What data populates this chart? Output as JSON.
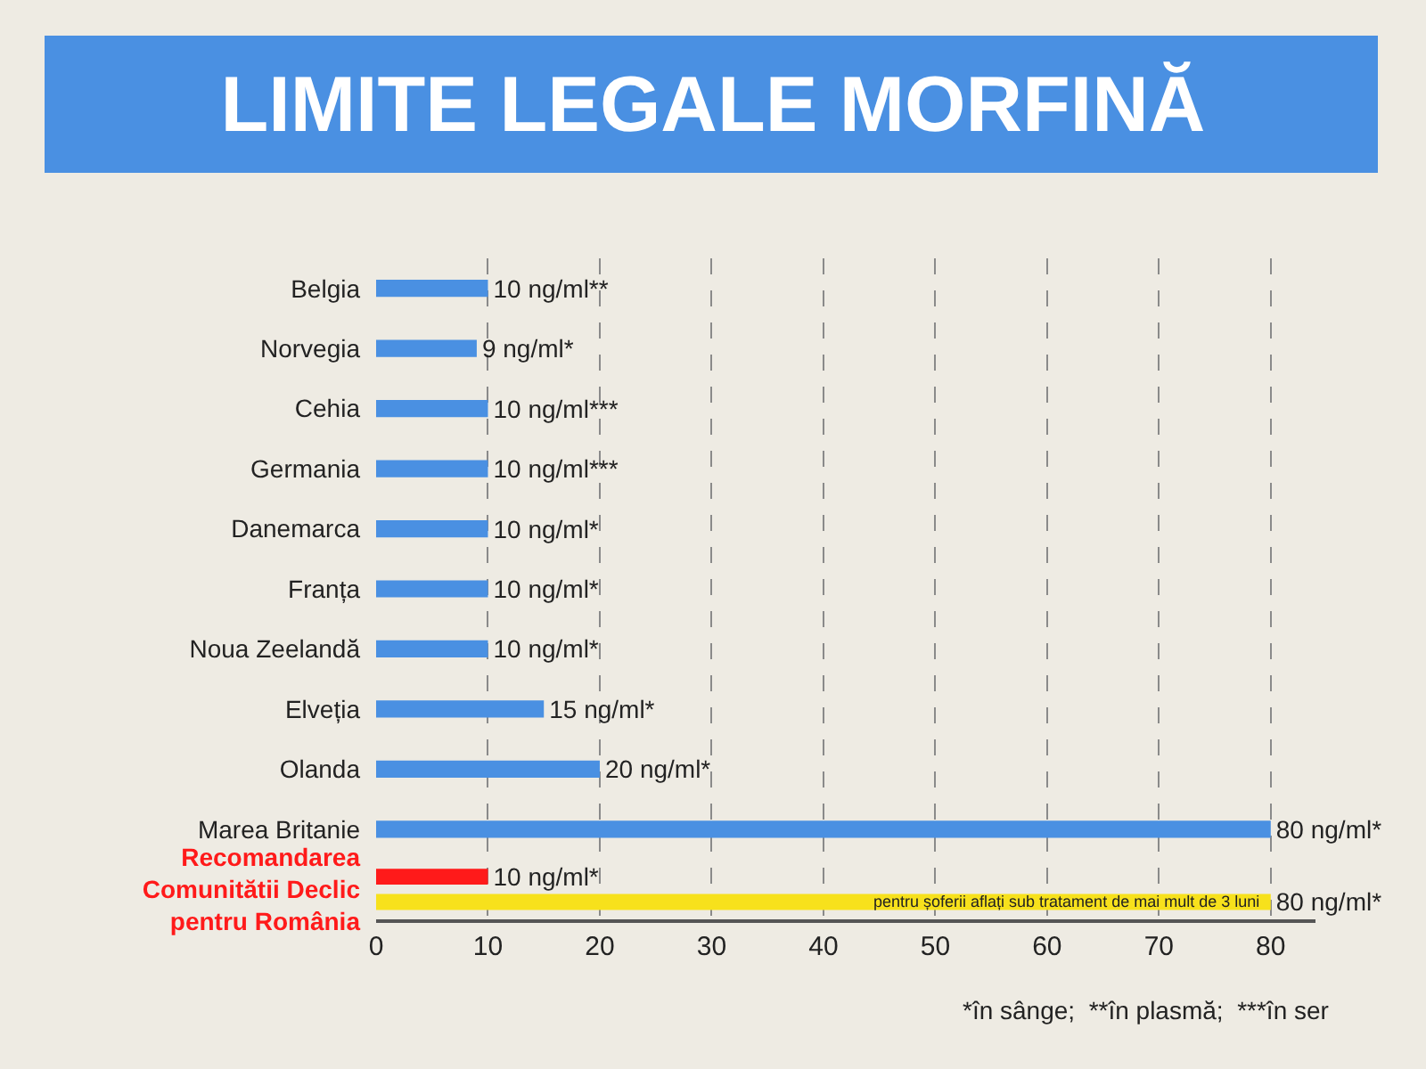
{
  "chart_data": {
    "type": "bar",
    "orientation": "horizontal",
    "title": "LIMITE LEGALE MORFINĂ",
    "categories": [
      "Belgia",
      "Norvegia",
      "Cehia",
      "Germania",
      "Danemarca",
      "Franța",
      "Noua Zeelandă",
      "Elveția",
      "Olanda",
      "Marea Britanie",
      "Recomandarea\nComunitătii Declic\npentru România"
    ],
    "series": [
      {
        "color": "#4a90e2",
        "values": [
          10,
          9,
          10,
          10,
          10,
          10,
          10,
          15,
          20,
          80,
          null
        ],
        "value_labels": [
          "10 ng/ml**",
          "9 ng/ml*",
          "10 ng/ml***",
          "10 ng/ml***",
          "10 ng/ml*",
          "10 ng/ml*",
          "10 ng/ml*",
          "15 ng/ml*",
          "20 ng/ml*",
          "80 ng/ml*",
          null
        ]
      },
      {
        "color": "#ff1a1a",
        "values": [
          null,
          null,
          null,
          null,
          null,
          null,
          null,
          null,
          null,
          null,
          10
        ],
        "value_labels": [
          null,
          null,
          null,
          null,
          null,
          null,
          null,
          null,
          null,
          null,
          "10 ng/ml*"
        ]
      },
      {
        "color": "#f7e11c",
        "values": [
          null,
          null,
          null,
          null,
          null,
          null,
          null,
          null,
          null,
          null,
          80
        ],
        "value_labels": [
          null,
          null,
          null,
          null,
          null,
          null,
          null,
          null,
          null,
          null,
          "80 ng/ml*"
        ]
      }
    ],
    "xlim": [
      0,
      84
    ],
    "xticks": [
      0,
      10,
      20,
      30,
      40,
      50,
      60,
      70,
      80
    ],
    "grid": "x",
    "annotations": [
      {
        "text": "pentru șoferii aflați sub tratament de mai mult de 3 luni",
        "x": 80,
        "y": "Recomandarea\nComunitătii Declic\npentru România"
      },
      "*în sânge;  **în plasmă;  ***în ser"
    ]
  }
}
